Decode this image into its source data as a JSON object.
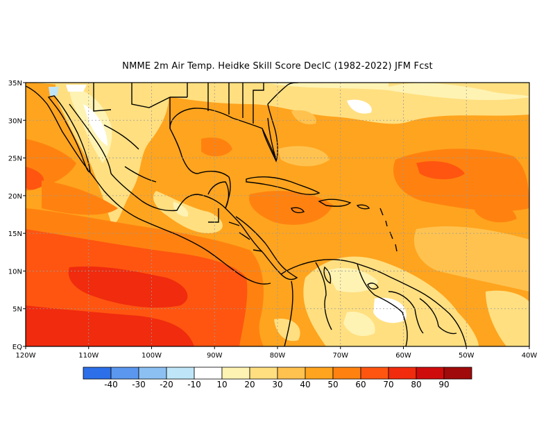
{
  "title": "NMME  2m Air Temp. Heidke Skill Score DecIC (1982-2022) JFM Fcst",
  "map": {
    "lon_range": [
      -120,
      -40
    ],
    "lat_range": [
      0,
      35
    ],
    "lat_ticks": [
      "EQ",
      "5N",
      "10N",
      "15N",
      "20N",
      "25N",
      "30N",
      "35N"
    ],
    "lon_ticks": [
      "120W",
      "110W",
      "100W",
      "90W",
      "80W",
      "70W",
      "60W",
      "50W",
      "40W"
    ],
    "grid": true
  },
  "colorbar": {
    "colors": [
      "#2c6fe8",
      "#5b97ee",
      "#8cc0f3",
      "#bfe6f8",
      "#ffffff",
      "#fff3b3",
      "#ffdf80",
      "#ffc24f",
      "#ffa41e",
      "#ff8210",
      "#ff5510",
      "#f02b0e",
      "#cf0c0c",
      "#a00a0a"
    ],
    "labels": [
      "-40",
      "-30",
      "-20",
      "-10",
      "10",
      "20",
      "30",
      "40",
      "50",
      "60",
      "70",
      "80",
      "90"
    ]
  }
}
